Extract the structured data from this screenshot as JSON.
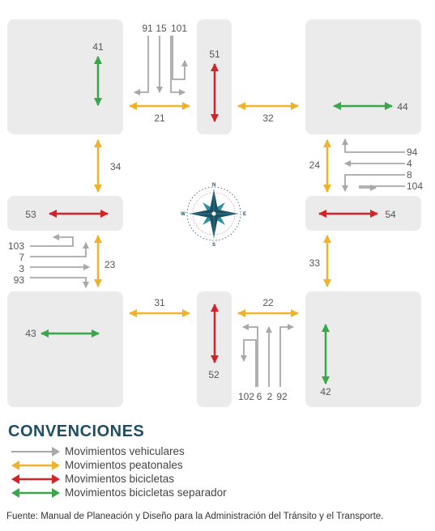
{
  "colors": {
    "vehicular": "#a8a8a8",
    "pedestrian": "#efb32b",
    "bicycle": "#d2232a",
    "bicycle_separator": "#3aa64a",
    "block": "#ebebeb",
    "label": "#555555",
    "title": "#1f4e63"
  },
  "labels": {
    "bike_separator": {
      "nw": "41",
      "ne": "44",
      "sw": "43",
      "se": "42"
    },
    "bike": {
      "north": "51",
      "south": "52",
      "west": "53",
      "east": "54"
    },
    "pedestrian": {
      "north_west": "21",
      "north_east": "32",
      "south_west": "31",
      "south_east": "22",
      "west_north": "34",
      "west_south": "23",
      "east_north": "24",
      "east_south": "33"
    },
    "vehicular": {
      "north": [
        "91",
        "15",
        "101"
      ],
      "east": [
        "94",
        "4",
        "8",
        "104"
      ],
      "west": [
        "103",
        "7",
        "3",
        "93"
      ],
      "south": [
        "102",
        "6",
        "2",
        "92"
      ]
    }
  },
  "compass": {
    "n": "N",
    "s": "S",
    "e": "E",
    "w": "W"
  },
  "legend": {
    "title": "CONVENCIONES",
    "items": [
      {
        "label": "Movimientos vehiculares",
        "type": "vehicular"
      },
      {
        "label": "Movimientos peatonales",
        "type": "pedestrian"
      },
      {
        "label": "Movimientos bicicletas",
        "type": "bicycle"
      },
      {
        "label": "Movimientos bicicletas separador",
        "type": "bicycle_separator"
      }
    ]
  },
  "source": "Fuente: Manual de Planeación y Diseño para la Administración del Tránsito y el Transporte."
}
